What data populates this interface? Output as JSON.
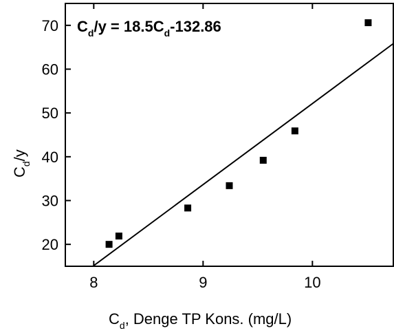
{
  "chart_data": {
    "type": "scatter",
    "annotation": [
      "C",
      "d",
      "/y = 18.5C",
      "d",
      "-132.86"
    ],
    "x_label": [
      "C",
      "d",
      ", Denge TP Kons. (mg/L)"
    ],
    "y_label": [
      "C",
      "d",
      "/y"
    ],
    "xlim": [
      7.74,
      10.74
    ],
    "xticks": [
      8,
      9,
      10
    ],
    "ylim": [
      15,
      75
    ],
    "yticks": [
      20,
      30,
      40,
      50,
      60,
      70
    ],
    "series": [
      {
        "color": "#000000",
        "x": [
          8.14,
          8.23,
          8.86,
          9.24,
          9.55,
          9.84,
          10.51
        ],
        "values": [
          20.0,
          21.9,
          28.3,
          33.4,
          39.2,
          45.9,
          70.6
        ]
      },
      {
        "color": "#000000",
        "kind": "line",
        "x": [
          7.99,
          10.74
        ],
        "values": [
          14.96,
          65.83
        ]
      }
    ]
  }
}
